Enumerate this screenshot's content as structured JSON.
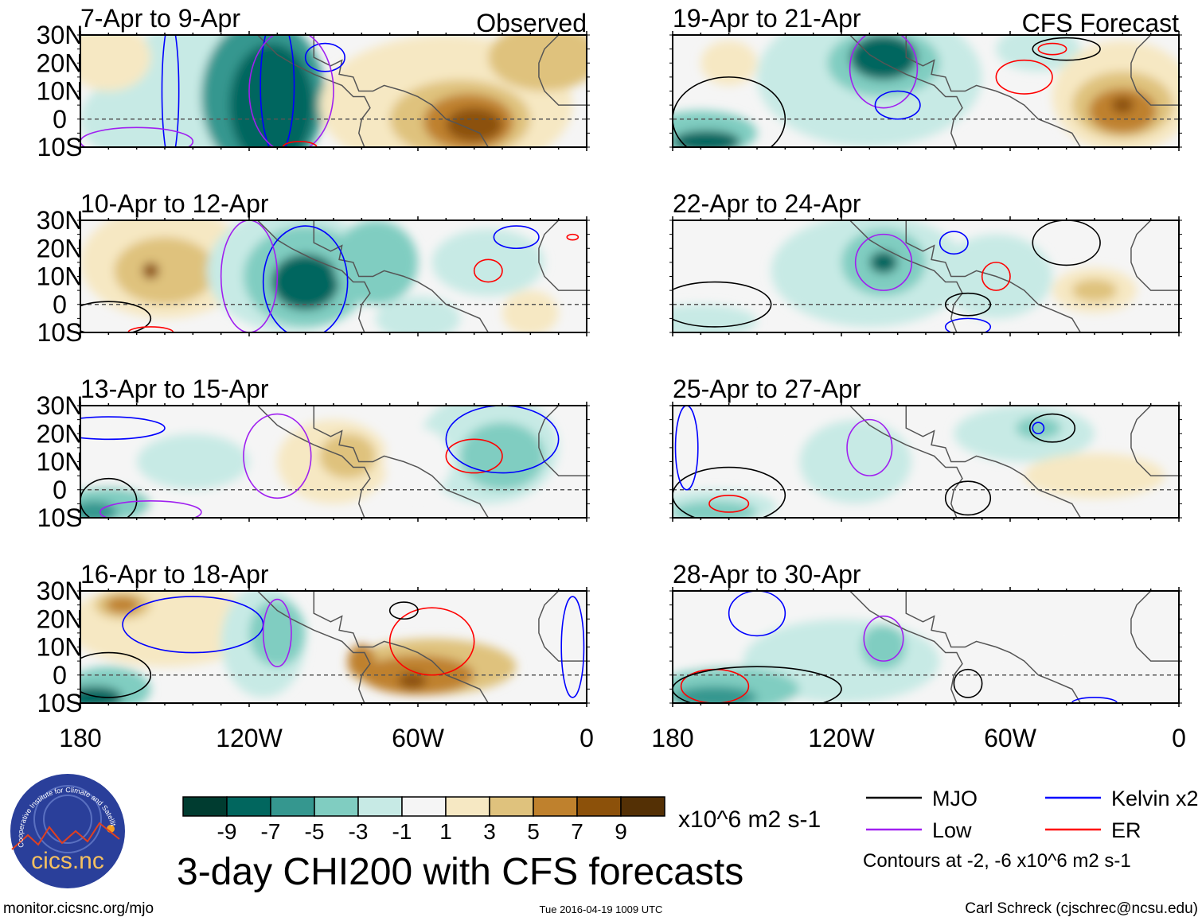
{
  "chart_data": {
    "type": "heatmap",
    "title": "3-day CHI200 with CFS forecasts",
    "units": "x10^6 m2 s-1",
    "lat_ticks": [
      "30N",
      "20N",
      "10N",
      "0",
      "10S"
    ],
    "lon_ticks": [
      "180",
      "120W",
      "60W",
      "0"
    ],
    "lat_range": [
      -10,
      30
    ],
    "lon_range_west": [
      180,
      0
    ],
    "colorbar": {
      "labels": [
        "-9",
        "-7",
        "-5",
        "-3",
        "-1",
        "1",
        "3",
        "5",
        "7",
        "9"
      ],
      "colors": [
        "#003c30",
        "#01665e",
        "#35978f",
        "#80cdc1",
        "#c7eae5",
        "#f5f5f5",
        "#f6e8c3",
        "#dfc27d",
        "#bf812d",
        "#8c510a",
        "#543005"
      ]
    },
    "legend": [
      {
        "label": "MJO",
        "color": "#000000"
      },
      {
        "label": "Kelvin x2",
        "color": "#0000ff"
      },
      {
        "label": "Low",
        "color": "#a020f0"
      },
      {
        "label": "ER",
        "color": "#ff0000"
      }
    ],
    "contour_note": "Contours at -2, -6 x10^6 m2 s-1",
    "column_labels": {
      "left": "Observed",
      "right": "CFS Forecast"
    },
    "panels": [
      {
        "title": "7-Apr to 9-Apr",
        "col": 0,
        "row": 0,
        "blobs": [
          [
            130,
            10,
            35,
            30,
            -3
          ],
          [
            115,
            8,
            22,
            28,
            -7
          ],
          [
            112,
            5,
            15,
            22,
            -9
          ],
          [
            160,
            0,
            20,
            15,
            -3
          ],
          [
            170,
            22,
            15,
            12,
            1
          ],
          [
            50,
            5,
            45,
            25,
            1
          ],
          [
            45,
            0,
            25,
            14,
            3
          ],
          [
            42,
            -1,
            16,
            10,
            5
          ],
          [
            40,
            -2,
            10,
            6,
            7
          ],
          [
            15,
            22,
            20,
            12,
            3
          ]
        ],
        "contours": [
          [
            148,
            10,
            3,
            25,
            "kelvin"
          ],
          [
            110,
            12,
            6,
            25,
            "kelvin"
          ],
          [
            93,
            22,
            7,
            5,
            "kelvin"
          ],
          [
            105,
            10,
            15,
            22,
            "low"
          ],
          [
            160,
            -8,
            20,
            5,
            "low"
          ],
          [
            102,
            -10,
            6,
            2,
            "er"
          ]
        ]
      },
      {
        "title": "10-Apr to 12-Apr",
        "col": 0,
        "row": 1,
        "blobs": [
          [
            150,
            15,
            30,
            20,
            1
          ],
          [
            150,
            12,
            18,
            12,
            3
          ],
          [
            155,
            12,
            3,
            3,
            7
          ],
          [
            105,
            12,
            30,
            22,
            -3
          ],
          [
            100,
            10,
            22,
            18,
            -5
          ],
          [
            100,
            8,
            12,
            10,
            -9
          ],
          [
            75,
            15,
            15,
            15,
            -5
          ],
          [
            60,
            -5,
            15,
            8,
            -3
          ],
          [
            35,
            15,
            20,
            12,
            -3
          ],
          [
            20,
            -3,
            10,
            8,
            1
          ]
        ],
        "contours": [
          [
            100,
            8,
            15,
            20,
            "kelvin"
          ],
          [
            120,
            10,
            10,
            20,
            "low"
          ],
          [
            35,
            12,
            5,
            4,
            "er"
          ],
          [
            25,
            24,
            8,
            4,
            "kelvin"
          ],
          [
            5,
            24,
            2,
            1,
            "er"
          ],
          [
            170,
            -5,
            15,
            6,
            "mjo"
          ],
          [
            155,
            -10,
            8,
            2,
            "er"
          ]
        ]
      },
      {
        "title": "13-Apr to 15-Apr",
        "col": 0,
        "row": 2,
        "blobs": [
          [
            150,
            12,
            30,
            22,
            -1
          ],
          [
            140,
            10,
            20,
            10,
            -3
          ],
          [
            170,
            -5,
            15,
            6,
            -5
          ],
          [
            175,
            -8,
            8,
            4,
            -7
          ],
          [
            90,
            10,
            20,
            15,
            1
          ],
          [
            85,
            12,
            10,
            8,
            3
          ],
          [
            35,
            15,
            25,
            20,
            -3
          ],
          [
            30,
            12,
            15,
            12,
            -5
          ],
          [
            60,
            10,
            12,
            12,
            -1
          ]
        ],
        "contours": [
          [
            40,
            12,
            10,
            6,
            "er"
          ],
          [
            30,
            18,
            20,
            12,
            "kelvin"
          ],
          [
            110,
            12,
            12,
            15,
            "low"
          ],
          [
            170,
            -4,
            10,
            8,
            "mjo"
          ],
          [
            155,
            -8,
            18,
            4,
            "low"
          ],
          [
            170,
            22,
            20,
            4,
            "kelvin"
          ]
        ]
      },
      {
        "title": "16-Apr to 18-Apr",
        "col": 0,
        "row": 3,
        "blobs": [
          [
            150,
            18,
            35,
            15,
            1
          ],
          [
            165,
            25,
            10,
            5,
            3
          ],
          [
            165,
            25,
            6,
            3,
            5
          ],
          [
            170,
            -5,
            15,
            8,
            -5
          ],
          [
            175,
            -8,
            10,
            4,
            -9
          ],
          [
            115,
            12,
            15,
            20,
            -3
          ],
          [
            110,
            15,
            10,
            12,
            -5
          ],
          [
            55,
            3,
            30,
            10,
            3
          ],
          [
            60,
            0,
            20,
            7,
            5
          ],
          [
            62,
            -2,
            5,
            3,
            7
          ],
          [
            80,
            5,
            5,
            6,
            5
          ]
        ],
        "contours": [
          [
            55,
            12,
            15,
            12,
            "er"
          ],
          [
            65,
            23,
            5,
            3,
            "mjo"
          ],
          [
            170,
            0,
            15,
            8,
            "mjo"
          ],
          [
            140,
            18,
            25,
            10,
            "kelvin"
          ],
          [
            110,
            15,
            5,
            12,
            "low"
          ],
          [
            5,
            10,
            4,
            18,
            "kelvin"
          ]
        ]
      },
      {
        "title": "19-Apr to 21-Apr",
        "col": 1,
        "row": 0,
        "blobs": [
          [
            110,
            15,
            40,
            25,
            -3
          ],
          [
            105,
            20,
            20,
            12,
            -5
          ],
          [
            105,
            22,
            12,
            8,
            -9
          ],
          [
            170,
            -5,
            20,
            8,
            -5
          ],
          [
            168,
            -8,
            12,
            4,
            -9
          ],
          [
            50,
            25,
            15,
            8,
            -3
          ],
          [
            20,
            8,
            25,
            20,
            1
          ],
          [
            20,
            5,
            18,
            12,
            3
          ],
          [
            20,
            3,
            12,
            8,
            5
          ],
          [
            20,
            5,
            4,
            3,
            7
          ],
          [
            160,
            20,
            10,
            8,
            1
          ]
        ],
        "contours": [
          [
            105,
            18,
            12,
            14,
            "low"
          ],
          [
            100,
            5,
            8,
            5,
            "kelvin"
          ],
          [
            55,
            15,
            10,
            6,
            "er"
          ],
          [
            40,
            25,
            12,
            4,
            "mjo"
          ],
          [
            45,
            25,
            5,
            2,
            "er"
          ],
          [
            160,
            0,
            20,
            15,
            "mjo"
          ]
        ]
      },
      {
        "title": "22-Apr to 24-Apr",
        "col": 1,
        "row": 1,
        "blobs": [
          [
            110,
            12,
            35,
            20,
            -3
          ],
          [
            105,
            15,
            15,
            12,
            -5
          ],
          [
            105,
            15,
            5,
            4,
            -9
          ],
          [
            170,
            -6,
            20,
            6,
            -3
          ],
          [
            65,
            10,
            20,
            15,
            -3
          ],
          [
            30,
            5,
            15,
            8,
            1
          ],
          [
            30,
            5,
            8,
            4,
            3
          ]
        ],
        "contours": [
          [
            105,
            15,
            10,
            10,
            "low"
          ],
          [
            65,
            10,
            5,
            5,
            "er"
          ],
          [
            40,
            22,
            12,
            8,
            "mjo"
          ],
          [
            75,
            0,
            8,
            4,
            "mjo"
          ],
          [
            80,
            22,
            5,
            4,
            "kelvin"
          ],
          [
            165,
            0,
            20,
            8,
            "mjo"
          ],
          [
            75,
            -8,
            8,
            3,
            "kelvin"
          ]
        ]
      },
      {
        "title": "25-Apr to 27-Apr",
        "col": 1,
        "row": 2,
        "blobs": [
          [
            120,
            10,
            30,
            20,
            -1
          ],
          [
            115,
            10,
            20,
            15,
            -3
          ],
          [
            165,
            -6,
            22,
            6,
            -3
          ],
          [
            165,
            -8,
            15,
            4,
            -5
          ],
          [
            55,
            20,
            25,
            10,
            -3
          ],
          [
            50,
            22,
            8,
            4,
            -5
          ],
          [
            30,
            5,
            25,
            8,
            1
          ]
        ],
        "contours": [
          [
            110,
            15,
            8,
            10,
            "low"
          ],
          [
            45,
            22,
            8,
            5,
            "mjo"
          ],
          [
            50,
            22,
            2,
            2,
            "kelvin"
          ],
          [
            160,
            -2,
            20,
            10,
            "mjo"
          ],
          [
            160,
            -5,
            7,
            3,
            "er"
          ],
          [
            75,
            -3,
            8,
            6,
            "mjo"
          ],
          [
            175,
            15,
            4,
            15,
            "kelvin"
          ]
        ]
      },
      {
        "title": "28-Apr to 30-Apr",
        "col": 1,
        "row": 3,
        "blobs": [
          [
            130,
            10,
            45,
            22,
            -1
          ],
          [
            120,
            5,
            35,
            15,
            -3
          ],
          [
            160,
            -5,
            25,
            8,
            -5
          ],
          [
            165,
            -8,
            15,
            4,
            -7
          ],
          [
            105,
            10,
            8,
            8,
            -5
          ],
          [
            60,
            12,
            25,
            12,
            -1
          ]
        ],
        "contours": [
          [
            105,
            13,
            7,
            8,
            "low"
          ],
          [
            165,
            -4,
            12,
            6,
            "er"
          ],
          [
            150,
            -5,
            30,
            8,
            "mjo"
          ],
          [
            75,
            -3,
            5,
            5,
            "mjo"
          ],
          [
            150,
            22,
            10,
            8,
            "kelvin"
          ],
          [
            30,
            -10,
            8,
            2,
            "kelvin"
          ]
        ]
      }
    ]
  },
  "footer": {
    "logo_text": "cics.nc",
    "logo_arc_text": "Cooperative Institute for Climate and Satellites",
    "url": "monitor.cicsnc.org/mjo",
    "timestamp": "Tue 2016-04-19 1009 UTC",
    "author": "Carl Schreck (cjschrec@ncsu.edu)"
  }
}
